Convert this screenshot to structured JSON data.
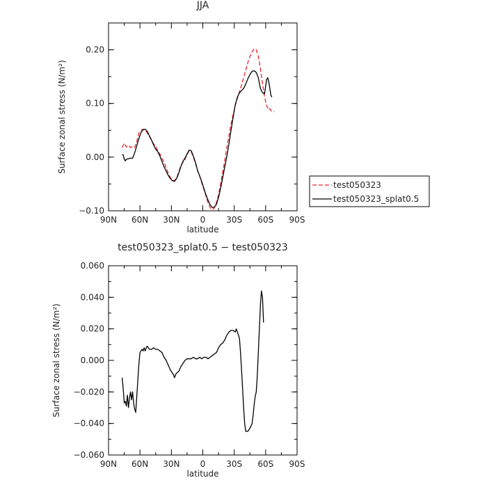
{
  "chart_data": [
    {
      "type": "line",
      "title": "JJA",
      "xlabel": "latitude",
      "ylabel": "Surface zonal stress (N/m²)",
      "xlim": [
        -90,
        90
      ],
      "ylim": [
        -0.1,
        0.25
      ],
      "x_ticks": [
        "90N",
        "60N",
        "30N",
        "0",
        "30S",
        "60S",
        "90S"
      ],
      "y_ticks": [
        "−0.10",
        "0.00",
        "0.10",
        "0.20"
      ],
      "legend": "right",
      "series": [
        {
          "name": "test050323",
          "color": "#e8242a",
          "dash": "dashed",
          "points": [
            [
              -77,
              0.018
            ],
            [
              -75,
              0.026
            ],
            [
              -73,
              0.019
            ],
            [
              -71,
              0.022
            ],
            [
              -69,
              0.018
            ],
            [
              -67,
              0.02
            ],
            [
              -65,
              0.018
            ],
            [
              -63,
              0.03
            ],
            [
              -61,
              0.045
            ],
            [
              -59,
              0.05
            ],
            [
              -57,
              0.052
            ],
            [
              -55,
              0.05
            ],
            [
              -53,
              0.045
            ],
            [
              -51,
              0.038
            ],
            [
              -49,
              0.032
            ],
            [
              -47,
              0.025
            ],
            [
              -45,
              0.02
            ],
            [
              -43,
              0.012
            ],
            [
              -41,
              0.006
            ],
            [
              -39,
              -0.002
            ],
            [
              -37,
              -0.01
            ],
            [
              -35,
              -0.02
            ],
            [
              -33,
              -0.03
            ],
            [
              -31,
              -0.038
            ],
            [
              -29,
              -0.043
            ],
            [
              -27,
              -0.044
            ],
            [
              -25,
              -0.038
            ],
            [
              -23,
              -0.028
            ],
            [
              -21,
              -0.016
            ],
            [
              -19,
              -0.01
            ],
            [
              -17,
              -0.004
            ],
            [
              -15,
              0.005
            ],
            [
              -13,
              0.012
            ],
            [
              -11,
              0.01
            ],
            [
              -9,
              0.0
            ],
            [
              -7,
              -0.012
            ],
            [
              -5,
              -0.025
            ],
            [
              -3,
              -0.035
            ],
            [
              -1,
              -0.048
            ],
            [
              1,
              -0.06
            ],
            [
              3,
              -0.072
            ],
            [
              5,
              -0.085
            ],
            [
              7,
              -0.094
            ],
            [
              9,
              -0.098
            ],
            [
              11,
              -0.095
            ],
            [
              13,
              -0.085
            ],
            [
              15,
              -0.07
            ],
            [
              17,
              -0.05
            ],
            [
              19,
              -0.028
            ],
            [
              21,
              -0.006
            ],
            [
              23,
              0.018
            ],
            [
              25,
              0.04
            ],
            [
              27,
              0.062
            ],
            [
              29,
              0.08
            ],
            [
              31,
              0.096
            ],
            [
              33,
              0.11
            ],
            [
              35,
              0.122
            ],
            [
              37,
              0.134
            ],
            [
              39,
              0.148
            ],
            [
              41,
              0.162
            ],
            [
              43,
              0.176
            ],
            [
              45,
              0.188
            ],
            [
              47,
              0.196
            ],
            [
              49,
              0.202
            ],
            [
              51,
              0.2
            ],
            [
              53,
              0.188
            ],
            [
              55,
              0.165
            ],
            [
              57,
              0.138
            ],
            [
              59,
              0.112
            ],
            [
              61,
              0.096
            ],
            [
              63,
              0.088
            ],
            [
              64,
              0.09
            ],
            [
              65,
              0.087
            ],
            [
              67,
              0.084
            ],
            [
              68,
              0.085
            ]
          ]
        },
        {
          "name": "test050323_splat0.5",
          "color": "#000000",
          "dash": "solid",
          "points": [
            [
              -77,
              0.005
            ],
            [
              -76,
              0.004
            ],
            [
              -75,
              -0.004
            ],
            [
              -74,
              -0.007
            ],
            [
              -73,
              -0.004
            ],
            [
              -71,
              -0.003
            ],
            [
              -69,
              -0.002
            ],
            [
              -67,
              -0.002
            ],
            [
              -65,
              0.008
            ],
            [
              -63,
              0.022
            ],
            [
              -61,
              0.035
            ],
            [
              -59,
              0.046
            ],
            [
              -57,
              0.051
            ],
            [
              -55,
              0.052
            ],
            [
              -53,
              0.048
            ],
            [
              -51,
              0.04
            ],
            [
              -49,
              0.032
            ],
            [
              -47,
              0.023
            ],
            [
              -45,
              0.015
            ],
            [
              -43,
              0.01
            ],
            [
              -41,
              0.002
            ],
            [
              -39,
              -0.008
            ],
            [
              -37,
              -0.018
            ],
            [
              -35,
              -0.026
            ],
            [
              -33,
              -0.034
            ],
            [
              -31,
              -0.04
            ],
            [
              -29,
              -0.044
            ],
            [
              -27,
              -0.045
            ],
            [
              -25,
              -0.04
            ],
            [
              -23,
              -0.03
            ],
            [
              -21,
              -0.018
            ],
            [
              -19,
              -0.008
            ],
            [
              -17,
              -0.002
            ],
            [
              -15,
              0.006
            ],
            [
              -13,
              0.013
            ],
            [
              -11,
              0.012
            ],
            [
              -9,
              0.002
            ],
            [
              -7,
              -0.01
            ],
            [
              -5,
              -0.025
            ],
            [
              -3,
              -0.035
            ],
            [
              -1,
              -0.046
            ],
            [
              1,
              -0.058
            ],
            [
              3,
              -0.07
            ],
            [
              5,
              -0.08
            ],
            [
              7,
              -0.089
            ],
            [
              9,
              -0.094
            ],
            [
              11,
              -0.093
            ],
            [
              13,
              -0.088
            ],
            [
              15,
              -0.075
            ],
            [
              17,
              -0.058
            ],
            [
              19,
              -0.038
            ],
            [
              21,
              -0.018
            ],
            [
              23,
              0.002
            ],
            [
              25,
              0.025
            ],
            [
              27,
              0.05
            ],
            [
              29,
              0.075
            ],
            [
              31,
              0.098
            ],
            [
              33,
              0.112
            ],
            [
              35,
              0.12
            ],
            [
              37,
              0.124
            ],
            [
              39,
              0.128
            ],
            [
              41,
              0.136
            ],
            [
              43,
              0.146
            ],
            [
              45,
              0.154
            ],
            [
              47,
              0.16
            ],
            [
              49,
              0.161
            ],
            [
              51,
              0.158
            ],
            [
              53,
              0.148
            ],
            [
              55,
              0.128
            ],
            [
              57,
              0.12
            ],
            [
              59,
              0.118
            ],
            [
              60,
              0.132
            ],
            [
              61,
              0.145
            ],
            [
              62,
              0.148
            ],
            [
              63,
              0.14
            ],
            [
              64,
              0.128
            ],
            [
              65,
              0.115
            ],
            [
              66,
              0.112
            ]
          ]
        }
      ]
    },
    {
      "type": "line",
      "title": "test050323_splat0.5 − test050323",
      "xlabel": "latitude",
      "ylabel": "Surface zonal stress (N/m²)",
      "xlim": [
        -90,
        90
      ],
      "ylim": [
        -0.06,
        0.06
      ],
      "x_ticks": [
        "90N",
        "60N",
        "30N",
        "0",
        "30S",
        "60S",
        "90S"
      ],
      "y_ticks": [
        "−0.060",
        "−0.040",
        "−0.020",
        "0.000",
        "0.020",
        "0.040",
        "0.060"
      ],
      "series": [
        {
          "color": "#000000",
          "dash": "solid",
          "points": [
            [
              -77,
              -0.011
            ],
            [
              -76,
              -0.018
            ],
            [
              -75,
              -0.027
            ],
            [
              -74,
              -0.026
            ],
            [
              -73,
              -0.029
            ],
            [
              -72,
              -0.022
            ],
            [
              -71,
              -0.03
            ],
            [
              -70,
              -0.024
            ],
            [
              -69,
              -0.02
            ],
            [
              -68,
              -0.025
            ],
            [
              -67,
              -0.02
            ],
            [
              -66,
              -0.027
            ],
            [
              -65,
              -0.031
            ],
            [
              -64,
              -0.033
            ],
            [
              -63,
              -0.022
            ],
            [
              -62,
              -0.012
            ],
            [
              -61,
              -0.002
            ],
            [
              -60,
              0.005
            ],
            [
              -58,
              0.007
            ],
            [
              -57,
              0.006
            ],
            [
              -56,
              0.008
            ],
            [
              -55,
              0.006
            ],
            [
              -54,
              0.008
            ],
            [
              -53,
              0.009
            ],
            [
              -51,
              0.007
            ],
            [
              -49,
              0.007
            ],
            [
              -47,
              0.008
            ],
            [
              -45,
              0.007
            ],
            [
              -43,
              0.007
            ],
            [
              -41,
              0.006
            ],
            [
              -39,
              0.005
            ],
            [
              -37,
              0.002
            ],
            [
              -35,
              0.0
            ],
            [
              -33,
              -0.003
            ],
            [
              -31,
              -0.006
            ],
            [
              -29,
              -0.008
            ],
            [
              -28,
              -0.009
            ],
            [
              -27,
              -0.011
            ],
            [
              -26,
              -0.009
            ],
            [
              -25,
              -0.008
            ],
            [
              -23,
              -0.007
            ],
            [
              -21,
              -0.004
            ],
            [
              -19,
              -0.002
            ],
            [
              -17,
              0.0
            ],
            [
              -15,
              0.001
            ],
            [
              -13,
              0.001
            ],
            [
              -11,
              0.001
            ],
            [
              -9,
              0.002
            ],
            [
              -7,
              0.001
            ],
            [
              -5,
              0.001
            ],
            [
              -3,
              0.002
            ],
            [
              -1,
              0.001
            ],
            [
              1,
              0.002
            ],
            [
              3,
              0.002
            ],
            [
              5,
              0.001
            ],
            [
              7,
              0.002
            ],
            [
              9,
              0.003
            ],
            [
              11,
              0.004
            ],
            [
              13,
              0.005
            ],
            [
              15,
              0.008
            ],
            [
              17,
              0.01
            ],
            [
              19,
              0.011
            ],
            [
              21,
              0.013
            ],
            [
              23,
              0.016
            ],
            [
              25,
              0.018
            ],
            [
              27,
              0.019
            ],
            [
              29,
              0.019
            ],
            [
              31,
              0.018
            ],
            [
              32,
              0.02
            ],
            [
              33,
              0.018
            ],
            [
              35,
              0.014
            ],
            [
              36,
              0.005
            ],
            [
              37,
              -0.006
            ],
            [
              38,
              -0.018
            ],
            [
              39,
              -0.03
            ],
            [
              40,
              -0.04
            ],
            [
              41,
              -0.045
            ],
            [
              43,
              -0.045
            ],
            [
              45,
              -0.043
            ],
            [
              47,
              -0.04
            ],
            [
              48,
              -0.035
            ],
            [
              49,
              -0.028
            ],
            [
              50,
              -0.023
            ],
            [
              51,
              -0.02
            ],
            [
              52,
              -0.01
            ],
            [
              53,
              0.005
            ],
            [
              54,
              0.02
            ],
            [
              55,
              0.035
            ],
            [
              56,
              0.044
            ],
            [
              57,
              0.04
            ],
            [
              58,
              0.024
            ]
          ]
        }
      ]
    }
  ]
}
